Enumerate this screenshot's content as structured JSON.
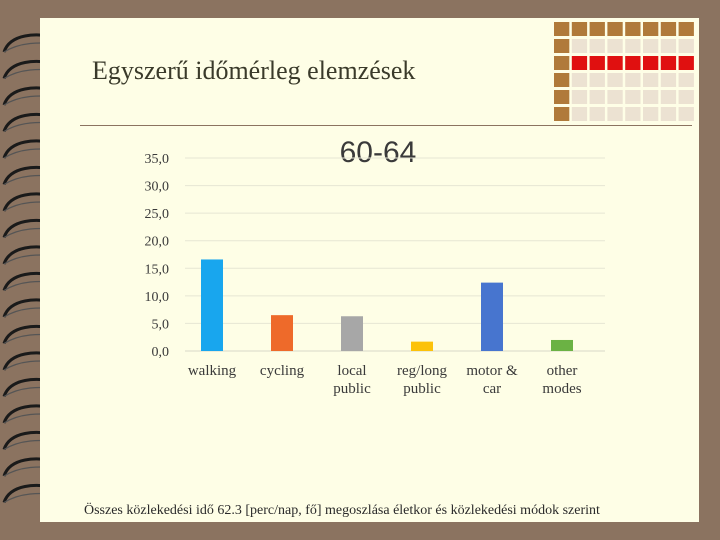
{
  "slide": {
    "title": "Egyszerű időmérleg elemzések",
    "caption": "Összes közlekedési idő 62.3 [perc/nap, fő] megoszlása életkor és közlekedési módok szerint"
  },
  "colors": {
    "background": "#8b7360",
    "page": "#fefee6",
    "accent_red": "#e01010",
    "grid_brown": "#b07a3a"
  },
  "chart_data": {
    "type": "bar",
    "title": "60-64",
    "categories": [
      [
        "walking"
      ],
      [
        "cycling"
      ],
      [
        "local",
        "public"
      ],
      [
        "reg/long",
        "public"
      ],
      [
        "motor &",
        "car"
      ],
      [
        "other",
        "modes"
      ]
    ],
    "values": [
      16.6,
      6.5,
      6.3,
      1.7,
      12.4,
      2.0
    ],
    "colors": [
      "#18a6ee",
      "#ee6a2a",
      "#a7a7a7",
      "#fcc20a",
      "#4775cf",
      "#6bb244"
    ],
    "ylim": [
      0,
      35
    ],
    "yticks": [
      "0,0",
      "5,0",
      "10,0",
      "15,0",
      "20,0",
      "25,0",
      "30,0",
      "35,0"
    ],
    "grid": true,
    "legend": "none"
  }
}
